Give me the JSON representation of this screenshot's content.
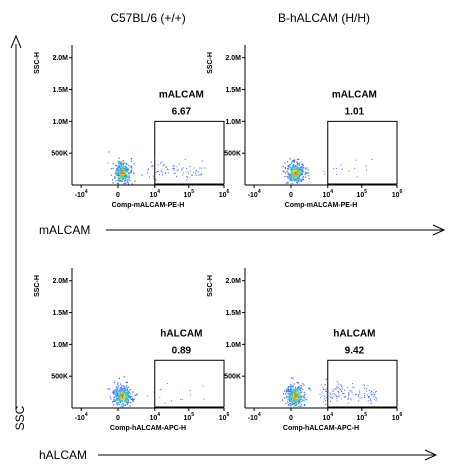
{
  "column_titles": [
    "C57BL/6 (+/+)",
    "B-hALCAM (H/H)"
  ],
  "side_labels": {
    "vertical": "SSC",
    "row1_horizontal": "mALCAM",
    "row2_horizontal": "hALCAM"
  },
  "chart_data": [
    {
      "type": "scatter",
      "title": "",
      "xlabel": "Comp-mALCAM-PE-H",
      "ylabel": "SSC-H",
      "x_ticks": [
        "-10^4",
        "0",
        "10^4",
        "10^5",
        "10^6"
      ],
      "y_ticks": [
        "500K",
        "1.0M",
        "1.5M",
        "2.0M"
      ],
      "ylim": [
        0,
        2200000
      ],
      "gate": {
        "name": "mALCAM",
        "percent": "6.67",
        "x_range": [
          10000,
          1000000
        ],
        "y_range": [
          0,
          1000000
        ]
      },
      "spread": "medium"
    },
    {
      "type": "scatter",
      "title": "",
      "xlabel": "Comp-mALCAM-PE-H",
      "ylabel": "SSC-H",
      "x_ticks": [
        "-10^4",
        "0",
        "10^4",
        "10^5",
        "10^6"
      ],
      "y_ticks": [
        "500K",
        "1.0M",
        "1.5M",
        "2.0M"
      ],
      "ylim": [
        0,
        2200000
      ],
      "gate": {
        "name": "mALCAM",
        "percent": "1.01",
        "x_range": [
          10000,
          1000000
        ],
        "y_range": [
          0,
          1000000
        ]
      },
      "spread": "low"
    },
    {
      "type": "scatter",
      "title": "",
      "xlabel": "Comp-hALCAM-APC-H",
      "ylabel": "SSC-H",
      "x_ticks": [
        "-10^4",
        "0",
        "10^4",
        "10^5",
        "10^6"
      ],
      "y_ticks": [
        "500K",
        "1.0M",
        "1.5M",
        "2.0M"
      ],
      "ylim": [
        0,
        2200000
      ],
      "gate": {
        "name": "hALCAM",
        "percent": "0.89",
        "x_range": [
          10000,
          1000000
        ],
        "y_range": [
          0,
          750000
        ]
      },
      "spread": "low"
    },
    {
      "type": "scatter",
      "title": "",
      "xlabel": "Comp-hALCAM-APC-H",
      "ylabel": "SSC-H",
      "x_ticks": [
        "-10^4",
        "0",
        "10^4",
        "10^5",
        "10^6"
      ],
      "y_ticks": [
        "500K",
        "1.0M",
        "1.5M",
        "2.0M"
      ],
      "ylim": [
        0,
        2200000
      ],
      "gate": {
        "name": "hALCAM",
        "percent": "9.42",
        "x_range": [
          10000,
          1000000
        ],
        "y_range": [
          0,
          750000
        ]
      },
      "spread": "high"
    }
  ]
}
